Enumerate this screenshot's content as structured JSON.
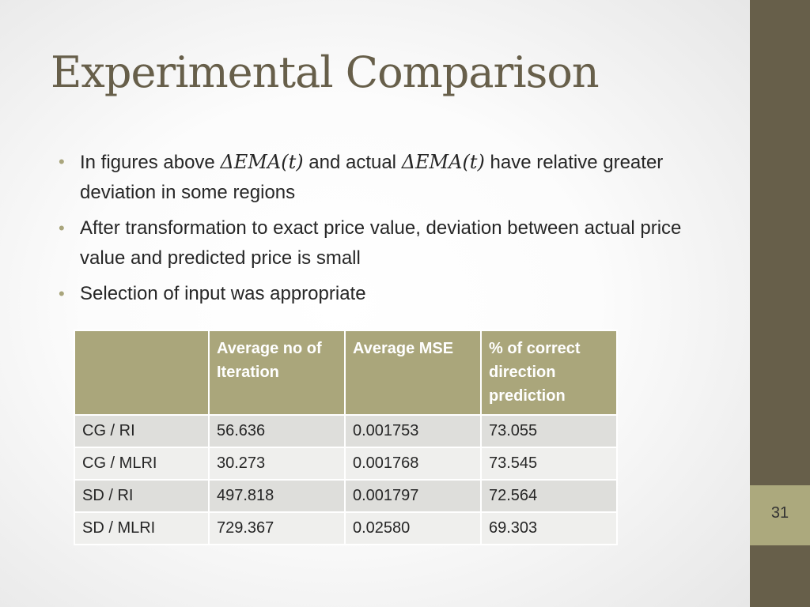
{
  "slide": {
    "title": "Experimental Comparison",
    "page_number": "31"
  },
  "bullets": [
    {
      "pre": "In figures above ",
      "math1": "ΔEMA(t)",
      "mid": " and actual ",
      "math2": "ΔEMA(t)",
      "post": " have relative greater deviation in some regions"
    },
    {
      "text": "After transformation to exact price value, deviation between actual price value and predicted price is small"
    },
    {
      "text": "Selection of input was appropriate"
    }
  ],
  "table": {
    "headers": [
      "",
      "Average no of Iteration",
      "Average MSE",
      "% of correct direction prediction"
    ],
    "rows": [
      [
        "CG / RI",
        "56.636",
        "0.001753",
        "73.055"
      ],
      [
        "CG / MLRI",
        "30.273",
        "0.001768",
        "73.545"
      ],
      [
        "SD / RI",
        "497.818",
        "0.001797",
        "72.564"
      ],
      [
        "SD / MLRI",
        "729.367",
        "0.02580",
        "69.303"
      ]
    ]
  },
  "colors": {
    "accent_dark": "#675f4a",
    "accent_light": "#aca97d",
    "header_fill": "#aaa67b",
    "row_odd": "#dededb",
    "row_even": "#efefed"
  }
}
